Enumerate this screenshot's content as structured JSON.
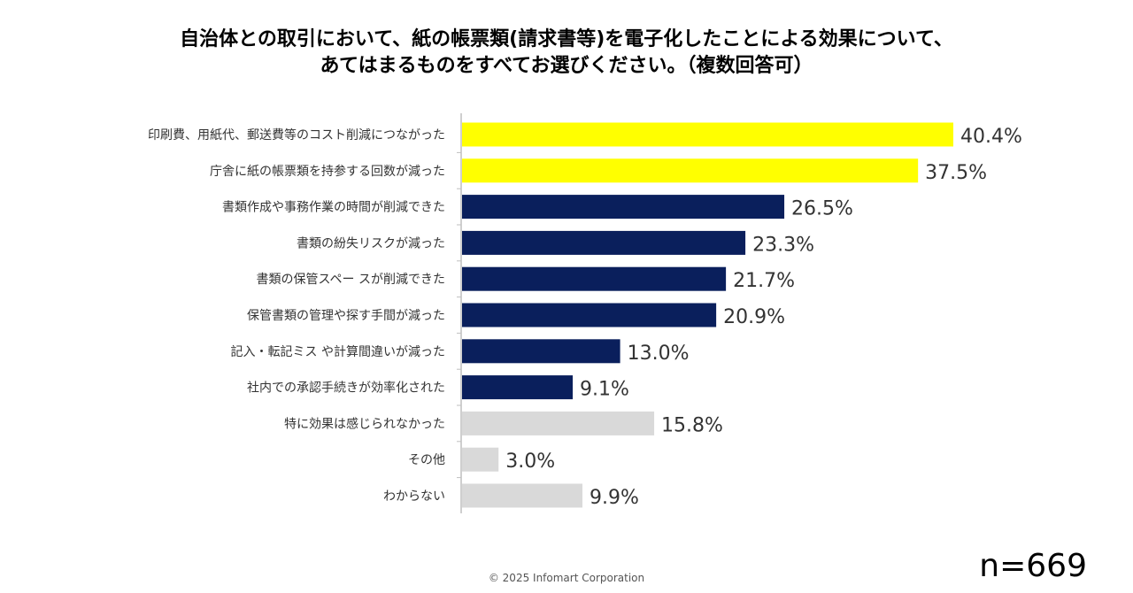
{
  "chart_data": {
    "type": "bar",
    "orientation": "horizontal",
    "title_lines": [
      "自治体との取引において、紙の帳票類(請求書等)を電子化したことによる効果について、",
      "あてはまるものをすべてお選びください。（複数回答可）"
    ],
    "categories": [
      "印刷費、用紙代、郵送費等のコスト削減につながった",
      "庁舎に紙の帳票類を持参する回数が減った",
      "書類作成や事務作業の時間が削減できた",
      "書類の紛失リスクが減った",
      "書類の保管スペー スが削減できた",
      "保管書類の管理や探す手間が減った",
      "記入・転記ミス や計算間違いが減った",
      "社内での承認手続きが効率化された",
      "特に効果は感じられなかった",
      "その他",
      "わからない"
    ],
    "values": [
      40.4,
      37.5,
      26.5,
      23.3,
      21.7,
      20.9,
      13.0,
      9.1,
      15.8,
      3.0,
      9.9
    ],
    "value_labels": [
      "40.4%",
      "37.5%",
      "26.5%",
      "23.3%",
      "21.7%",
      "20.9%",
      "13.0%",
      "9.1%",
      "15.8%",
      "3.0%",
      "9.9%"
    ],
    "bar_colors": [
      "#ffff00",
      "#ffff00",
      "#0a1f5c",
      "#0a1f5c",
      "#0a1f5c",
      "#0a1f5c",
      "#0a1f5c",
      "#0a1f5c",
      "#d9d9d9",
      "#d9d9d9",
      "#d9d9d9"
    ],
    "xlim": [
      0,
      40.4
    ],
    "sample_size": "n=669"
  },
  "footer": {
    "copyright": "© 2025 Infomart Corporation"
  }
}
